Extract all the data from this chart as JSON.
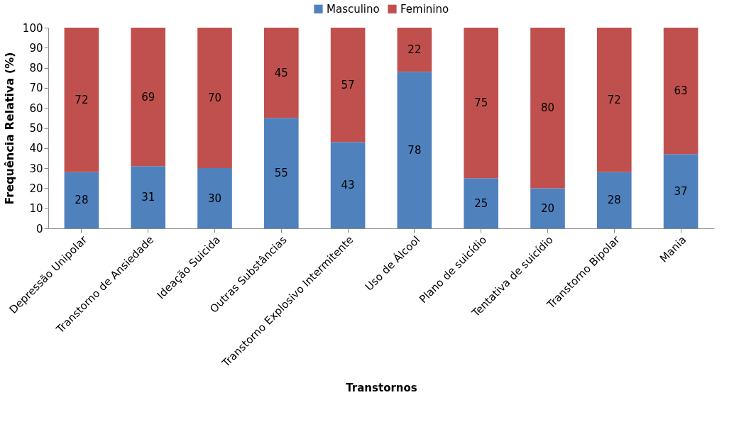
{
  "chart_data": {
    "type": "bar",
    "stacked": true,
    "xlabel": "Transtornos",
    "ylabel": "Frequência Relativa (%)",
    "categories": [
      "Depressão Unipolar",
      "Transtorno de Ansiedade",
      "Ideação Suicida",
      "Outras Substâncias",
      "Transtorno Explosivo Intermitente",
      "Uso de Álcool",
      "Plano de suicídio",
      "Tentativa de suicídio",
      "Transtorno Bipolar",
      "Mania"
    ],
    "series": [
      {
        "name": "Masculino",
        "color": "#4f81bd",
        "values": [
          28,
          31,
          30,
          55,
          43,
          78,
          25,
          20,
          28,
          37
        ]
      },
      {
        "name": "Feminino",
        "color": "#c0504d",
        "values": [
          72,
          69,
          70,
          45,
          57,
          22,
          75,
          80,
          72,
          63
        ]
      }
    ],
    "ylim": [
      0,
      100
    ],
    "yticks": [
      0,
      10,
      20,
      30,
      40,
      50,
      60,
      70,
      80,
      90,
      100
    ],
    "grid": false,
    "legend": "top",
    "data_labels": true
  }
}
